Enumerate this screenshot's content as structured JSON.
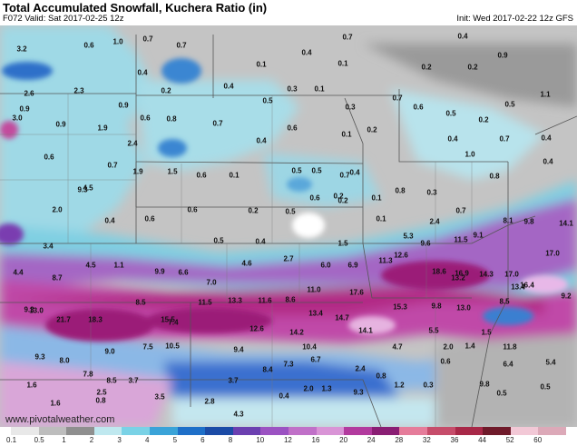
{
  "header": {
    "title": "Total Accumulated Snowfall, Kuchera Ratio (in)",
    "valid": "F072 Valid: Sat 2017-02-25 12z",
    "init": "Init: Wed 2017-02-22 12z GFS"
  },
  "credit": {
    "site": "www.pivotalweather.com",
    "logo_left": "piv",
    "logo_mid": "tal",
    "logo_right": "weather"
  },
  "colorbar": {
    "ticks": [
      "0.1",
      "0.5",
      "1",
      "2",
      "3",
      "4",
      "5",
      "6",
      "8",
      "10",
      "12",
      "16",
      "20",
      "24",
      "28",
      "32",
      "36",
      "44",
      "52",
      "60"
    ],
    "colors": [
      "#e8e8e8",
      "#bdbdbd",
      "#8f8f8f",
      "#bfe8ef",
      "#7ad2e6",
      "#3aa3d8",
      "#1e6fc8",
      "#1b4ba6",
      "#6b3fb0",
      "#9b52c2",
      "#c070c8",
      "#d994d6",
      "#b23a9e",
      "#8a1e74",
      "#e57c9a",
      "#c64c6a",
      "#a82848",
      "#6f1a2a",
      "#f2c8d6",
      "#dca9b8"
    ]
  },
  "snow_labels": [
    {
      "t": "3.2"
    },
    {
      "t": "0.6"
    },
    {
      "t": "1.0"
    },
    {
      "t": "0.7"
    },
    {
      "t": "0.7"
    },
    {
      "t": "0.7"
    },
    {
      "t": "0.4"
    },
    {
      "t": "0.4"
    },
    {
      "t": "0.1"
    },
    {
      "t": "0.4"
    },
    {
      "t": "0.1"
    },
    {
      "t": "0.2"
    },
    {
      "t": "0.2"
    },
    {
      "t": "0.9"
    },
    {
      "t": "0.4"
    },
    {
      "t": "0.3"
    },
    {
      "t": "2.6"
    },
    {
      "t": "2.3"
    },
    {
      "t": "0.2"
    },
    {
      "t": "0.9"
    },
    {
      "t": "0.1"
    },
    {
      "t": "1.1"
    },
    {
      "t": "0.9"
    },
    {
      "t": "0.5"
    },
    {
      "t": "0.7"
    },
    {
      "t": "0.3"
    },
    {
      "t": "0.6"
    },
    {
      "t": "3.0"
    },
    {
      "t": "0.9"
    },
    {
      "t": "1.9"
    },
    {
      "t": "0.6"
    },
    {
      "t": "0.8"
    },
    {
      "t": "0.7"
    },
    {
      "t": "0.6"
    },
    {
      "t": "0.1"
    },
    {
      "t": "0.2"
    },
    {
      "t": "0.4"
    },
    {
      "t": "0.5"
    },
    {
      "t": "0.2"
    },
    {
      "t": "0.5"
    },
    {
      "t": "0.7"
    },
    {
      "t": "0.4"
    },
    {
      "t": "0.4"
    },
    {
      "t": "2.4"
    },
    {
      "t": "0.6"
    },
    {
      "t": "0.7"
    },
    {
      "t": "1.0"
    },
    {
      "t": "0.4"
    },
    {
      "t": "0.7"
    },
    {
      "t": "1.9"
    },
    {
      "t": "1.5"
    },
    {
      "t": "0.6"
    },
    {
      "t": "0.1"
    },
    {
      "t": "0.5"
    },
    {
      "t": "0.5"
    },
    {
      "t": "0.4"
    },
    {
      "t": "0.2"
    },
    {
      "t": "0.6"
    },
    {
      "t": "2.0"
    },
    {
      "t": "0.4"
    },
    {
      "t": "0.6"
    },
    {
      "t": "0.2"
    },
    {
      "t": "0.5"
    },
    {
      "t": "0.2"
    },
    {
      "t": "0.1"
    },
    {
      "t": "0.8"
    },
    {
      "t": "0.3"
    },
    {
      "t": "0.8"
    },
    {
      "t": "4.5"
    },
    {
      "t": "9.3"
    },
    {
      "t": "2.4"
    },
    {
      "t": "0.7"
    },
    {
      "t": "0.1"
    },
    {
      "t": "0.6"
    },
    {
      "t": "0.5"
    },
    {
      "t": "0.4"
    },
    {
      "t": "1.5"
    },
    {
      "t": "5.3"
    },
    {
      "t": "3.4"
    },
    {
      "t": "9.6"
    },
    {
      "t": "11.5"
    },
    {
      "t": "9.1"
    },
    {
      "t": "8.1"
    },
    {
      "t": "9.8"
    },
    {
      "t": "14.1"
    },
    {
      "t": "4.4"
    },
    {
      "t": "8.7"
    },
    {
      "t": "4.5"
    },
    {
      "t": "1.1"
    },
    {
      "t": "9.9"
    },
    {
      "t": "6.6"
    },
    {
      "t": "4.6"
    },
    {
      "t": "2.7"
    },
    {
      "t": "6.0"
    },
    {
      "t": "6.9"
    },
    {
      "t": "11.3"
    },
    {
      "t": "12.6"
    },
    {
      "t": "18.6"
    },
    {
      "t": "16.9"
    },
    {
      "t": "13.2"
    },
    {
      "t": "14.3"
    },
    {
      "t": "17.0"
    },
    {
      "t": "13.4"
    },
    {
      "t": "17.0"
    },
    {
      "t": "16.4"
    },
    {
      "t": "7.0"
    },
    {
      "t": "11.0"
    },
    {
      "t": "17.6"
    },
    {
      "t": "9.2"
    },
    {
      "t": "13.0"
    },
    {
      "t": "8.5"
    },
    {
      "t": "11.5"
    },
    {
      "t": "13.3"
    },
    {
      "t": "11.6"
    },
    {
      "t": "8.6"
    },
    {
      "t": "15.3"
    },
    {
      "t": "9.8"
    },
    {
      "t": "13.0"
    },
    {
      "t": "8.5"
    },
    {
      "t": "7.4"
    },
    {
      "t": "21.7"
    },
    {
      "t": "18.3"
    },
    {
      "t": "15.5"
    },
    {
      "t": "13.4"
    },
    {
      "t": "14.7"
    },
    {
      "t": "12.6"
    },
    {
      "t": "14.2"
    },
    {
      "t": "14.1"
    },
    {
      "t": "5.5"
    },
    {
      "t": "1.5"
    },
    {
      "t": "9.3"
    },
    {
      "t": "9.0"
    },
    {
      "t": "7.5"
    },
    {
      "t": "10.5"
    },
    {
      "t": "9.4"
    },
    {
      "t": "10.4"
    },
    {
      "t": "4.7"
    },
    {
      "t": "2.0"
    },
    {
      "t": "1.4"
    },
    {
      "t": "11.8"
    },
    {
      "t": "9.3"
    },
    {
      "t": "8.0"
    },
    {
      "t": "7.8"
    },
    {
      "t": "8.4"
    },
    {
      "t": "7.3"
    },
    {
      "t": "6.7"
    },
    {
      "t": "2.4"
    },
    {
      "t": "0.8"
    },
    {
      "t": "0.6"
    },
    {
      "t": "6.4"
    },
    {
      "t": "5.4"
    },
    {
      "t": "8.5"
    },
    {
      "t": "3.7"
    },
    {
      "t": "3.7"
    },
    {
      "t": "2.0"
    },
    {
      "t": "1.3"
    },
    {
      "t": "1.2"
    },
    {
      "t": "0.3"
    },
    {
      "t": "9.8"
    },
    {
      "t": "0.5"
    },
    {
      "t": "1.6"
    },
    {
      "t": "2.5"
    },
    {
      "t": "3.5"
    },
    {
      "t": "2.8"
    },
    {
      "t": "0.4"
    },
    {
      "t": "9.3"
    },
    {
      "t": "0.5"
    },
    {
      "t": "1.6"
    },
    {
      "t": "0.8"
    },
    {
      "t": "4.3"
    }
  ]
}
